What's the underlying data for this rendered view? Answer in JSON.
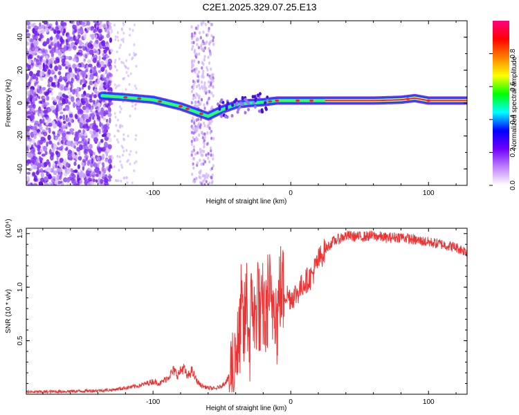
{
  "title": "C2E1.2025.329.07.25.E13",
  "chart_data": [
    {
      "type": "heatmap",
      "name": "spectrogram",
      "xlabel": "Height of straight line (km)",
      "ylabel": "Frequency (Hz)",
      "xlim": [
        -192,
        128
      ],
      "ylim": [
        -50,
        50
      ],
      "xticks": [
        -100,
        0,
        100
      ],
      "xtick_labels": [
        "-100",
        "0",
        "100"
      ],
      "yticks": [
        -40,
        -20,
        0,
        20,
        40
      ],
      "ytick_labels": [
        "-40",
        "-20",
        "0",
        "20",
        "40"
      ],
      "ridge": {
        "x": [
          -137,
          -120,
          -100,
          -80,
          -60,
          -50,
          -40,
          -30,
          -20,
          -10,
          0,
          20,
          40,
          60,
          80,
          90,
          100,
          128
        ],
        "y": [
          4.5,
          3.5,
          2,
          -2,
          -8,
          -4,
          -1,
          0,
          0.5,
          1.5,
          1.5,
          1.5,
          1.5,
          1.5,
          2,
          3,
          1.5,
          1.5
        ]
      },
      "colorbar": {
        "label": "Normalized spectral amplitude",
        "range": [
          0,
          1
        ],
        "ticks": [
          0.0,
          0.2,
          0.4,
          0.6,
          0.8
        ],
        "tick_labels": [
          "0.0",
          "0.2",
          "0.4",
          "0.6",
          "0.8"
        ],
        "colormap": [
          "#ffffff",
          "#c080ff",
          "#7000ff",
          "#0000ff",
          "#00ffff",
          "#00ff00",
          "#ffff00",
          "#ff8000",
          "#ff0000",
          "#ff0080"
        ]
      }
    },
    {
      "type": "line",
      "name": "snr",
      "xlabel": "Height of straight line (km)",
      "ylabel": "SNR (10 * v/v)",
      "scale_label": "(x10⁴)",
      "xlim": [
        -192,
        128
      ],
      "ylim": [
        0,
        1.55
      ],
      "xticks": [
        -100,
        0,
        100
      ],
      "xtick_labels": [
        "-100",
        "0",
        "100"
      ],
      "yticks": [
        0.5,
        1.0,
        1.5
      ],
      "ytick_labels": [
        "0.5",
        "1.0",
        "1.5"
      ],
      "color": "#ee3333",
      "x": [
        -192,
        -150,
        -130,
        -120,
        -110,
        -100,
        -95,
        -90,
        -85,
        -82,
        -78,
        -75,
        -72,
        -68,
        -65,
        -60,
        -55,
        -50,
        -45,
        -42,
        -40,
        -38,
        -36,
        -34,
        -32,
        -30,
        -28,
        -26,
        -24,
        -22,
        -20,
        -18,
        -16,
        -14,
        -12,
        -10,
        -8,
        -5,
        0,
        5,
        10,
        15,
        20,
        25,
        30,
        40,
        50,
        60,
        70,
        80,
        90,
        100,
        110,
        120,
        128
      ],
      "y": [
        0.02,
        0.03,
        0.04,
        0.06,
        0.08,
        0.12,
        0.1,
        0.15,
        0.22,
        0.18,
        0.25,
        0.16,
        0.22,
        0.12,
        0.08,
        0.06,
        0.05,
        0.08,
        0.15,
        0.25,
        0.5,
        0.35,
        0.8,
        0.55,
        0.9,
        0.45,
        0.95,
        0.6,
        1.0,
        0.6,
        0.85,
        0.65,
        1.05,
        0.7,
        1.0,
        0.65,
        1.0,
        0.95,
        0.9,
        0.95,
        1.05,
        1.1,
        1.25,
        1.35,
        1.42,
        1.48,
        1.47,
        1.48,
        1.46,
        1.47,
        1.44,
        1.42,
        1.4,
        1.37,
        1.33
      ]
    }
  ]
}
